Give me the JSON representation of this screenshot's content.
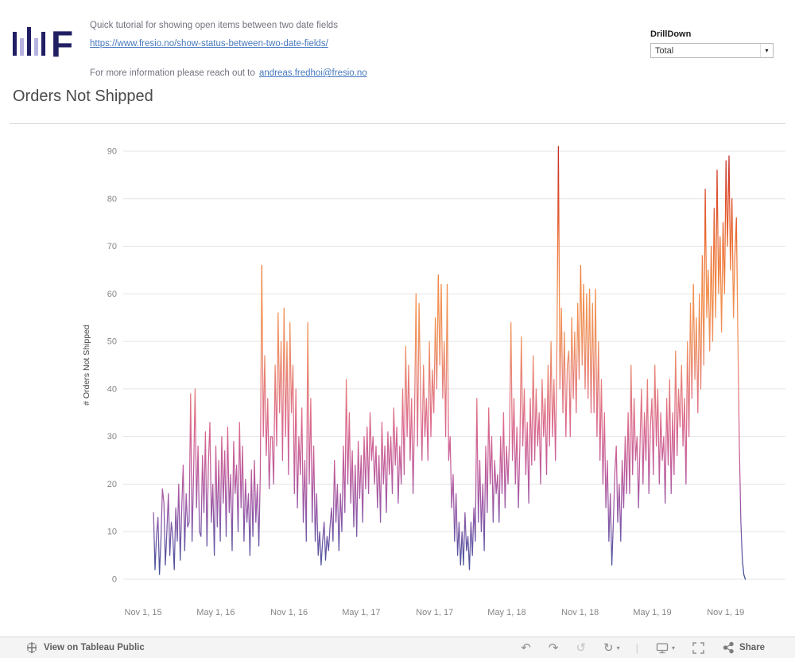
{
  "header": {
    "logo_letter": "F",
    "tutorial_text": "Quick tutorial for showing open items between two date fields",
    "tutorial_link": "https://www.fresio.no/show-status-between-two-date-fields/",
    "contact_text": "For more information please reach out to",
    "contact_link": "andreas.fredhoi@fresio.no",
    "drilldown": {
      "label": "DrillDown",
      "selected": "Total"
    }
  },
  "title": "Orders Not Shipped",
  "chart_data": {
    "type": "line",
    "title": "Orders Not Shipped",
    "xlabel": "",
    "ylabel": "# Orders Not Shipped",
    "ylim": [
      0,
      90
    ],
    "yticks": [
      0,
      10,
      20,
      30,
      40,
      50,
      60,
      70,
      80,
      90
    ],
    "grid": "horizontal",
    "legend": "none",
    "x_domain_days": [
      -50,
      1611
    ],
    "xticks": [
      {
        "label": "Nov 1, 15",
        "day": 0
      },
      {
        "label": "May 1, 16",
        "day": 182
      },
      {
        "label": "Nov 1, 16",
        "day": 366
      },
      {
        "label": "May 1, 17",
        "day": 547
      },
      {
        "label": "Nov 1, 17",
        "day": 731
      },
      {
        "label": "May 1, 18",
        "day": 912
      },
      {
        "label": "Nov 1, 18",
        "day": 1096
      },
      {
        "label": "May 1, 19",
        "day": 1277
      },
      {
        "label": "Nov 1, 19",
        "day": 1461
      }
    ],
    "series_name": "# Orders Not Shipped",
    "x_start_day": 26,
    "x_step_days": 3.72,
    "values": [
      14,
      2,
      9,
      13,
      1,
      8,
      19,
      16,
      3,
      10,
      18,
      5,
      12,
      9,
      2,
      15,
      8,
      20,
      4,
      15,
      24,
      6,
      18,
      11,
      12,
      39,
      8,
      22,
      40,
      15,
      28,
      10,
      9,
      26,
      14,
      31,
      7,
      24,
      33,
      12,
      20,
      5,
      28,
      11,
      25,
      8,
      30,
      16,
      27,
      9,
      32,
      14,
      22,
      6,
      29,
      18,
      24,
      10,
      33,
      15,
      28,
      8,
      21,
      12,
      18,
      5,
      23,
      9,
      25,
      12,
      20,
      7,
      22,
      66,
      30,
      47,
      26,
      38,
      19,
      30,
      30,
      20,
      45,
      28,
      56,
      35,
      50,
      25,
      57,
      30,
      50,
      22,
      54,
      35,
      45,
      18,
      40,
      15,
      30,
      22,
      36,
      12,
      25,
      8,
      54,
      20,
      38,
      12,
      28,
      8,
      18,
      5,
      10,
      3,
      8,
      12,
      4,
      9,
      6,
      11,
      15,
      8,
      25,
      12,
      20,
      6,
      18,
      10,
      28,
      14,
      42,
      20,
      35,
      16,
      27,
      11,
      24,
      9,
      29,
      17,
      26,
      12,
      30,
      19,
      32,
      18,
      35,
      25,
      30,
      20,
      28,
      15,
      26,
      12,
      33,
      20,
      28,
      14,
      31,
      22,
      30,
      18,
      36,
      24,
      32,
      16,
      28,
      20,
      40,
      22,
      49,
      30,
      45,
      25,
      38,
      18,
      35,
      60,
      28,
      58,
      40,
      25,
      45,
      30,
      38,
      25,
      50,
      30,
      44,
      35,
      55,
      40,
      64,
      45,
      62,
      38,
      50,
      30,
      62,
      25,
      30,
      15,
      22,
      8,
      18,
      5,
      12,
      3,
      10,
      3,
      14,
      6,
      9,
      2,
      12,
      5,
      15,
      8,
      38,
      12,
      25,
      10,
      20,
      6,
      28,
      14,
      36,
      20,
      30,
      12,
      25,
      18,
      22,
      12,
      30,
      18,
      35,
      15,
      28,
      20,
      30,
      54,
      25,
      38,
      20,
      32,
      15,
      28,
      51,
      28,
      40,
      22,
      33,
      16,
      38,
      24,
      47,
      25,
      40,
      28,
      35,
      20,
      42,
      30,
      38,
      22,
      45,
      28,
      50,
      30,
      42,
      25,
      50,
      91,
      40,
      57,
      35,
      52,
      30,
      45,
      48,
      30,
      55,
      38,
      52,
      35,
      58,
      42,
      66,
      45,
      62,
      40,
      60,
      38,
      61,
      35,
      58,
      35,
      61,
      30,
      50,
      25,
      42,
      20,
      35,
      15,
      25,
      8,
      18,
      3,
      12,
      22,
      28,
      12,
      20,
      8,
      25,
      15,
      30,
      18,
      35,
      18,
      45,
      22,
      38,
      25,
      30,
      15,
      28,
      40,
      20,
      35,
      25,
      42,
      18,
      32,
      38,
      22,
      45,
      28,
      40,
      20,
      35,
      25,
      30,
      16,
      38,
      24,
      42,
      18,
      35,
      22,
      48,
      26,
      40,
      32,
      45,
      28,
      38,
      20,
      50,
      30,
      58,
      38,
      62,
      42,
      55,
      35,
      60,
      40,
      68,
      45,
      82,
      55,
      65,
      48,
      70,
      50,
      78,
      55,
      86,
      60,
      72,
      52,
      75,
      60,
      88,
      70,
      89,
      65,
      80,
      55,
      68,
      76,
      50,
      28,
      12,
      4,
      1,
      0
    ],
    "color_gradient": [
      {
        "offset": 0.0,
        "color": "#c22927"
      },
      {
        "offset": 0.1,
        "color": "#dc4b2b"
      },
      {
        "offset": 0.22,
        "color": "#ec7036"
      },
      {
        "offset": 0.34,
        "color": "#f28e4b"
      },
      {
        "offset": 0.45,
        "color": "#ee9263"
      },
      {
        "offset": 0.55,
        "color": "#e57d7b"
      },
      {
        "offset": 0.65,
        "color": "#d9688e"
      },
      {
        "offset": 0.75,
        "color": "#bd5c9c"
      },
      {
        "offset": 0.84,
        "color": "#9559a7"
      },
      {
        "offset": 0.92,
        "color": "#6456a3"
      },
      {
        "offset": 1.0,
        "color": "#3d4e92"
      }
    ],
    "colors": {
      "axis_text": "#858585",
      "grid_line": "#e4e4e4",
      "axis_title": "#454545",
      "border_line": "#d8d8d8"
    }
  },
  "icons": {
    "undo": "↶",
    "redo": "↷",
    "revert": "↺",
    "refresh": "↻",
    "caret_down": "▾",
    "separator": "|"
  },
  "footer": {
    "view_label": "View on Tableau Public",
    "share_label": "Share"
  }
}
